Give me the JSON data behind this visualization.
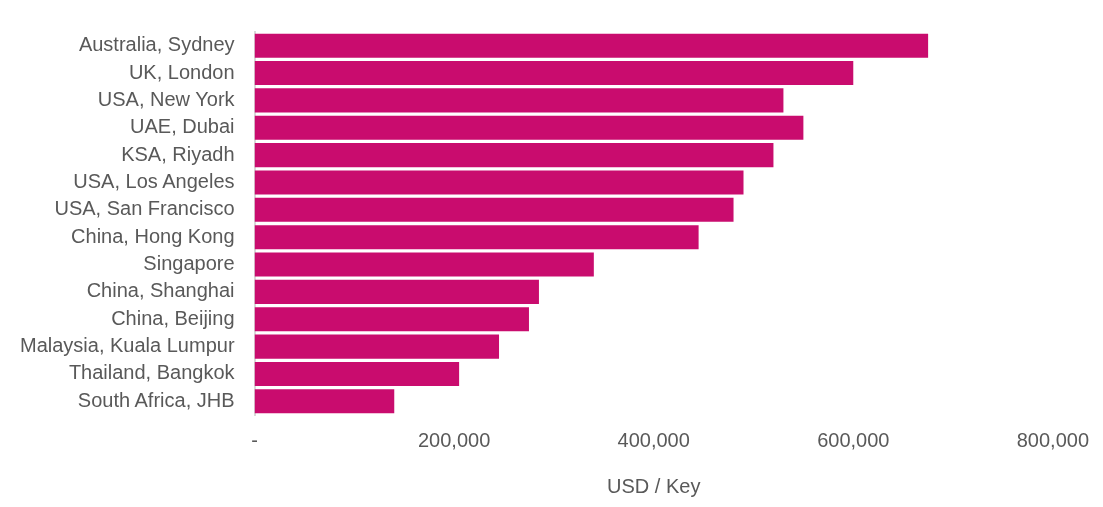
{
  "chart_data": {
    "type": "bar",
    "orientation": "horizontal",
    "xlabel": "USD / Key",
    "color": "#c90c6e",
    "categories": [
      "Australia, Sydney",
      "UK, London",
      "USA, New York",
      "UAE, Dubai",
      "KSA, Riyadh",
      "USA, Los Angeles",
      "USA, San Francisco",
      "China, Hong Kong",
      "Singapore",
      "China, Shanghai",
      "China, Beijing",
      "Malaysia, Kuala Lumpur",
      "Thailand, Bangkok",
      "South Africa, JHB"
    ],
    "values": [
      675000,
      600000,
      530000,
      550000,
      520000,
      490000,
      480000,
      445000,
      340000,
      285000,
      275000,
      245000,
      205000,
      140000
    ],
    "xlim": [
      0,
      800000
    ],
    "xticks": [
      {
        "value": 0,
        "label": "-"
      },
      {
        "value": 200000,
        "label": "200,000"
      },
      {
        "value": 400000,
        "label": "400,000"
      },
      {
        "value": 600000,
        "label": "600,000"
      },
      {
        "value": 800000,
        "label": "800,000"
      }
    ]
  }
}
